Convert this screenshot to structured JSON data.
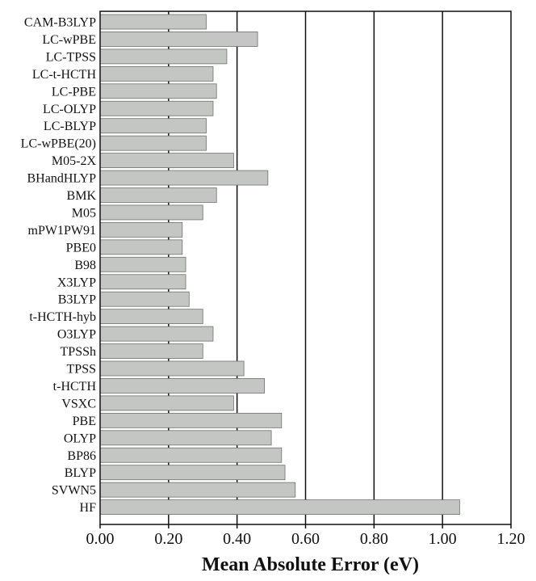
{
  "colors": {
    "bar_fill": "#c3c6c2",
    "bar_stroke": "#6e716d",
    "axis": "#111111",
    "grid": "#111111",
    "background": "#ffffff"
  },
  "chart_data": {
    "type": "bar",
    "orientation": "horizontal",
    "title": "",
    "xlabel": "Mean Absolute Error (eV)",
    "ylabel": "",
    "xlim": [
      0,
      1.2
    ],
    "x_ticks": [
      0.0,
      0.2,
      0.4,
      0.6,
      0.8,
      1.0,
      1.2
    ],
    "x_tick_labels": [
      "0.00",
      "0.20",
      "0.40",
      "0.60",
      "0.80",
      "1.00",
      "1.20"
    ],
    "grid": "vertical major gridlines",
    "legend": "none",
    "categories": [
      "CAM-B3LYP",
      "LC-wPBE",
      "LC-TPSS",
      "LC-t-HCTH",
      "LC-PBE",
      "LC-OLYP",
      "LC-BLYP",
      "LC-wPBE(20)",
      "M05-2X",
      "BHandHLYP",
      "BMK",
      "M05",
      "mPW1PW91",
      "PBE0",
      "B98",
      "X3LYP",
      "B3LYP",
      "t-HCTH-hyb",
      "O3LYP",
      "TPSSh",
      "TPSS",
      "t-HCTH",
      "VSXC",
      "PBE",
      "OLYP",
      "BP86",
      "BLYP",
      "SVWN5",
      "HF"
    ],
    "values": [
      0.31,
      0.46,
      0.37,
      0.33,
      0.34,
      0.33,
      0.31,
      0.31,
      0.39,
      0.49,
      0.34,
      0.3,
      0.24,
      0.24,
      0.25,
      0.25,
      0.26,
      0.3,
      0.33,
      0.3,
      0.42,
      0.48,
      0.39,
      0.53,
      0.5,
      0.53,
      0.54,
      0.57,
      1.05
    ]
  }
}
